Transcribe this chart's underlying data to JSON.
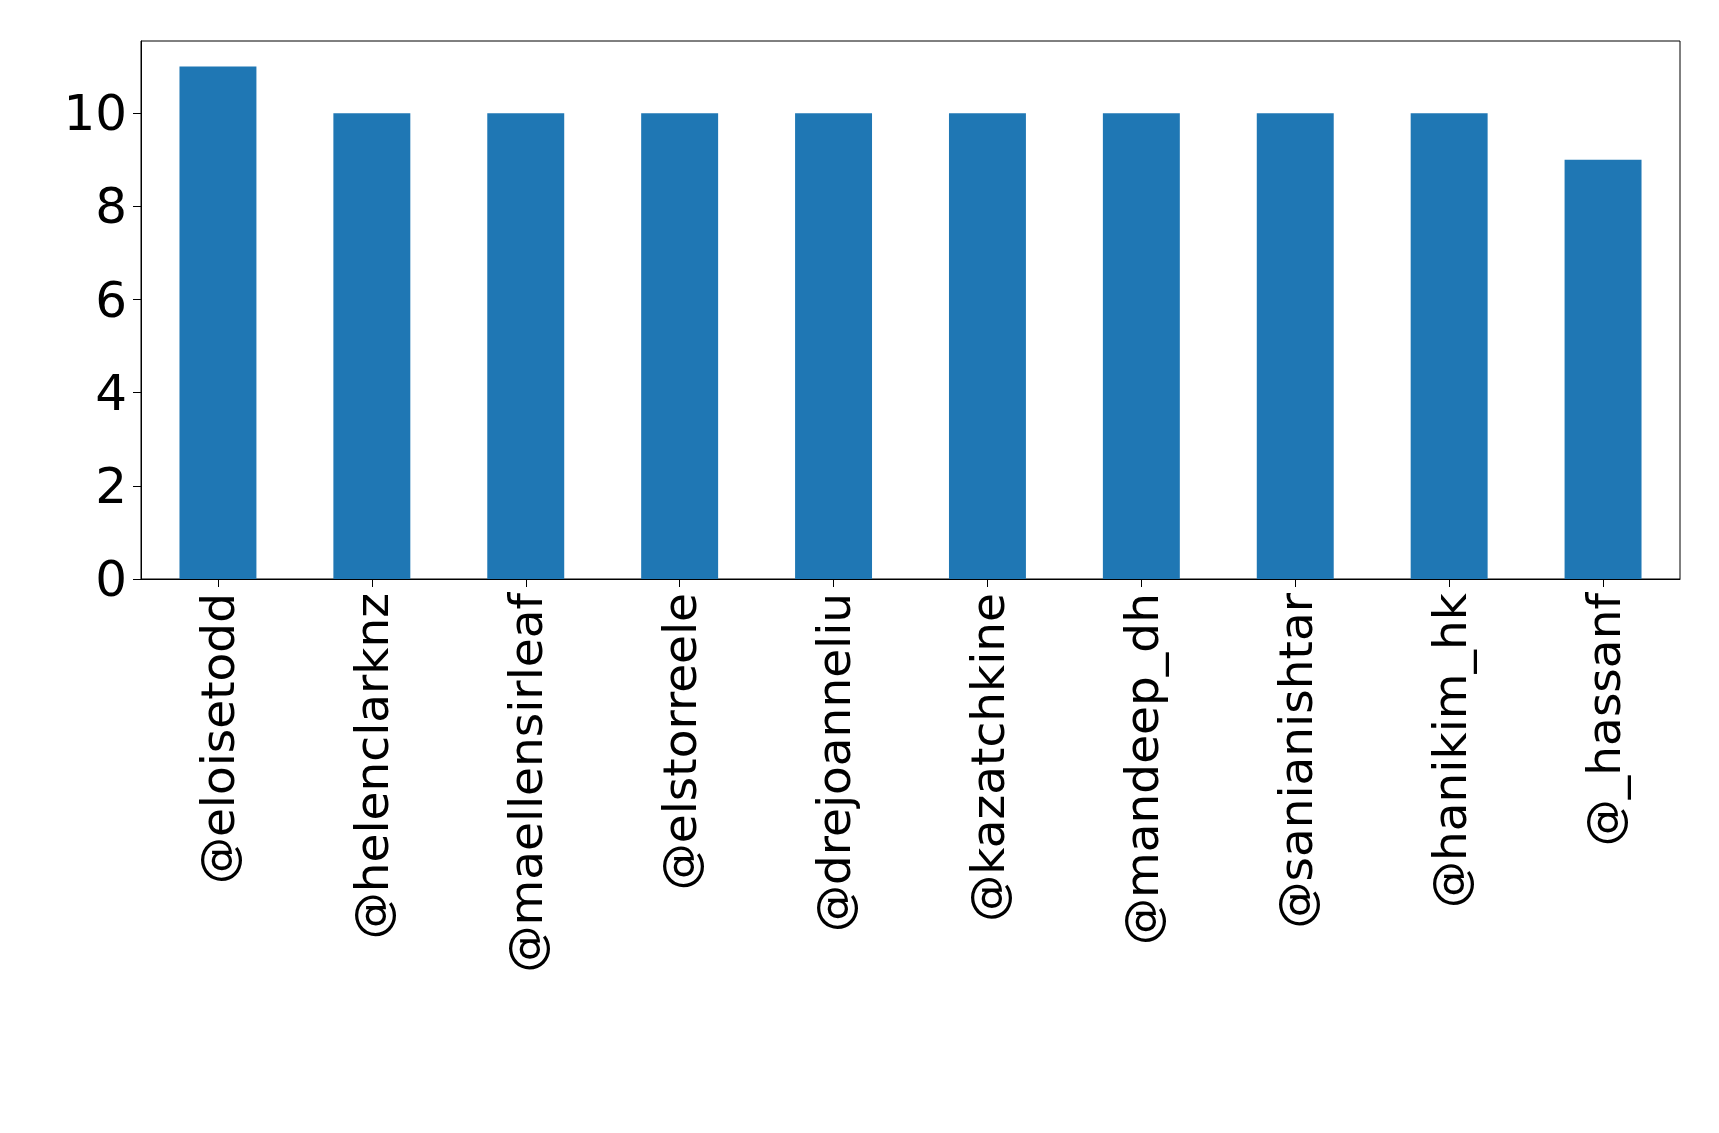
{
  "chart_data": {
    "type": "bar",
    "categories": [
      "@eloisetodd",
      "@helenclarknz",
      "@maellensirleaf",
      "@elstorreele",
      "@drejoanneliu",
      "@kazatchkine",
      "@mandeep_dh",
      "@sanianishtar",
      "@hanikim_hk",
      "@_hassanf"
    ],
    "values": [
      11,
      10,
      10,
      10,
      10,
      10,
      10,
      10,
      10,
      9
    ],
    "color": "#1f77b4",
    "ylim": [
      0,
      11.55
    ],
    "yticks": [
      0,
      2,
      4,
      6,
      8,
      10
    ],
    "grid": false
  }
}
